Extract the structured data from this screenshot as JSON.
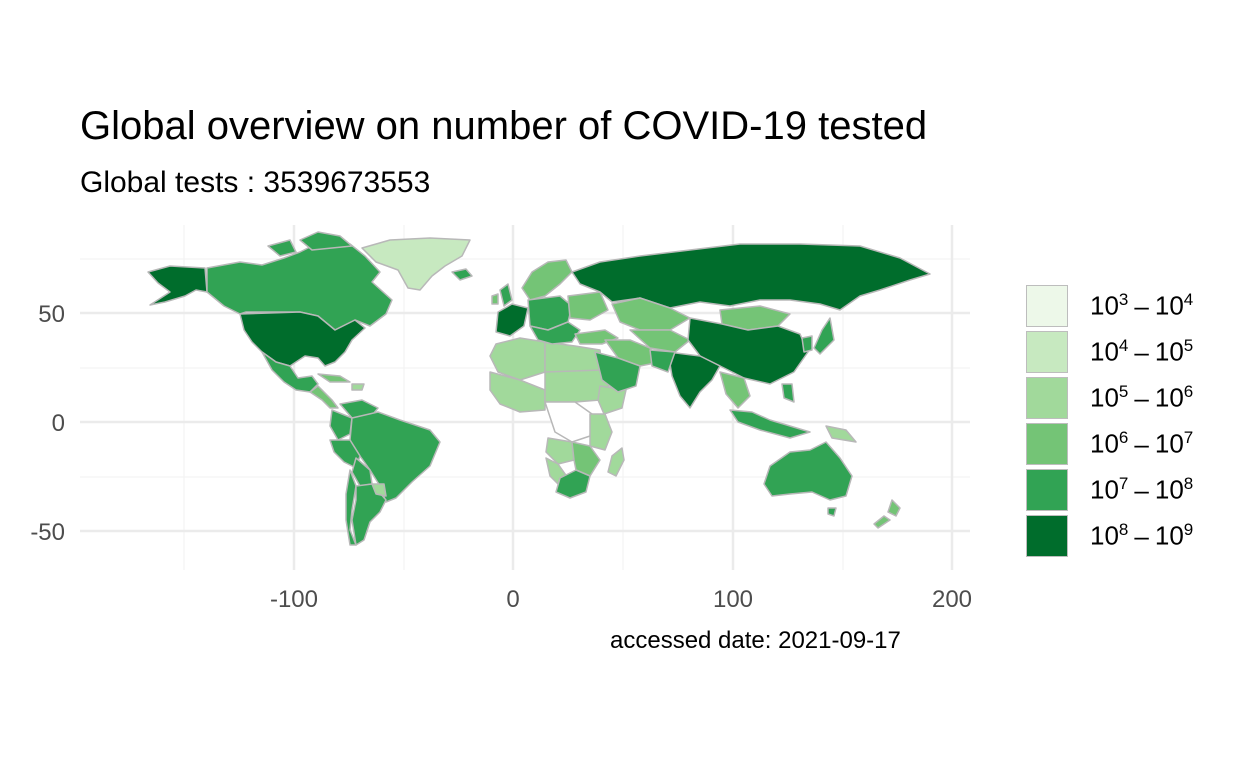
{
  "title": "Global overview on number of COVID-19 tested",
  "subtitle": "Global tests : 3539673553",
  "caption": "accessed date: 2021-09-17",
  "colors": {
    "c1": "#edf8e9",
    "c2": "#c7e9c0",
    "c3": "#a1d99b",
    "c4": "#74c476",
    "c5": "#31a354",
    "c6": "#006d2c",
    "border": "#b8b8b8",
    "grid": "#ebebeb"
  },
  "map": {
    "x_ticks": [
      "-100",
      "0",
      "100",
      "200"
    ],
    "y_ticks": [
      "50",
      "0",
      "-50"
    ]
  },
  "legend": {
    "items": [
      {
        "low": "3",
        "high": "4",
        "color_key": "c1"
      },
      {
        "low": "4",
        "high": "5",
        "color_key": "c2"
      },
      {
        "low": "5",
        "high": "6",
        "color_key": "c3"
      },
      {
        "low": "6",
        "high": "7",
        "color_key": "c4"
      },
      {
        "low": "7",
        "high": "8",
        "color_key": "c5"
      },
      {
        "low": "8",
        "high": "9",
        "color_key": "c6"
      }
    ]
  }
}
